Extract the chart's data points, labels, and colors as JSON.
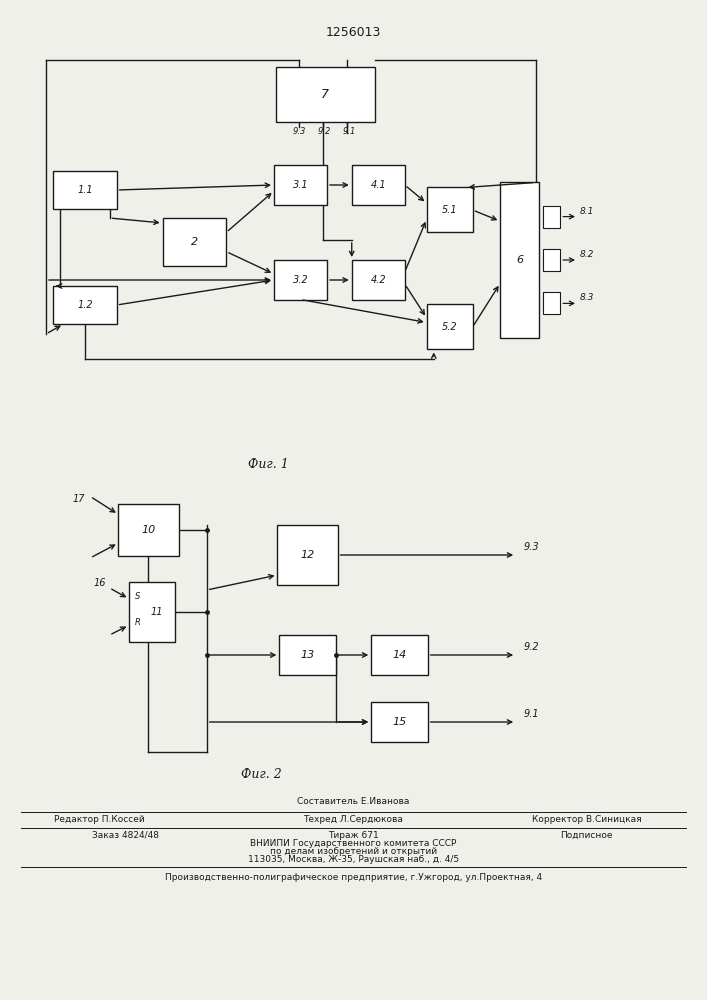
{
  "title": "1256013",
  "bg_color": "#f0f0eb",
  "box_color": "#ffffff",
  "line_color": "#1a1a1a",
  "fig1_label": "Фиг. 1",
  "fig2_label": "Фиг. 2",
  "footer": {
    "sostavitel": "Составитель Е.Иванова",
    "redaktor": "Редактор П.Коссей",
    "tehred": "Техред Л.Сердюкова",
    "korrektor": "Корректор В.Синицкая",
    "zakaz": "Заказ 4824/48",
    "tirazh": "Тираж 671",
    "podpisnoe": "Подписное",
    "vniip1": "ВНИИПИ Государственного комитета СССР",
    "vniip2": "по делам изобретений и открытий",
    "addr": "113035, Москва, Ж-35, Раушская наб., д. 4/5",
    "predpr": "Производственно-полиграфическое предприятие, г.Ужгород, ул.Проектная, 4"
  }
}
